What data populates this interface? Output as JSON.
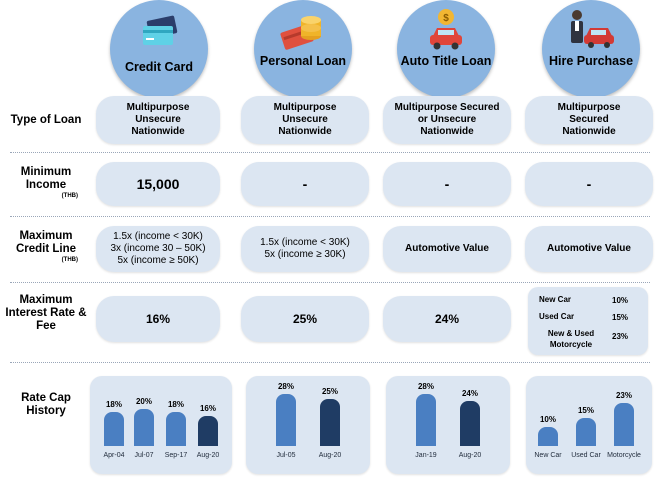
{
  "colors": {
    "circle": "#8ab4e0",
    "pill": "#dce6f2",
    "bar_light": "#4a7fc2",
    "bar_dark": "#1f3c64"
  },
  "headers": [
    {
      "label": "Credit Card",
      "icon": "credit-card-icon"
    },
    {
      "label": "Personal Loan",
      "icon": "coins-card-icon"
    },
    {
      "label": "Auto Title Loan",
      "icon": "car-coin-icon"
    },
    {
      "label": "Hire Purchase",
      "icon": "car-person-icon"
    }
  ],
  "rows": {
    "type_of_loan": {
      "label": "Type of Loan",
      "cells": [
        "Multipurpose Unsecure Nationwide",
        "Multipurpose Unsecure Nationwide",
        "Multipurpose Secured or Unsecure Nationwide",
        "Multipurpose Secured Nationwide"
      ]
    },
    "minimum_income": {
      "label": "Minimum Income",
      "unit": "(THB)",
      "cells": [
        "15,000",
        "-",
        "-",
        "-"
      ]
    },
    "max_credit_line": {
      "label": "Maximum Credit Line",
      "unit": "(THB)",
      "cells": [
        "1.5x (income < 30K)\n3x (income 30 – 50K)\n5x (income ≥ 50K)",
        "1.5x (income < 30K)\n5x (income ≥ 30K)",
        "Automotive Value",
        "Automotive Value"
      ]
    },
    "max_interest": {
      "label": "Maximum Interest Rate & Fee",
      "cells": [
        "16%",
        "25%",
        "24%"
      ],
      "hire_purchase": [
        {
          "name": "New Car",
          "rate": "10%"
        },
        {
          "name": "Used Car",
          "rate": "15%"
        },
        {
          "name": "New & Used Motorcycle",
          "rate": "23%"
        }
      ]
    },
    "rate_cap_history": {
      "label": "Rate Cap History"
    }
  },
  "chart_data": [
    {
      "type": "bar",
      "categories": [
        "Apr-04",
        "Jul-07",
        "Sep-17",
        "Aug-20"
      ],
      "values": [
        18,
        20,
        18,
        16
      ],
      "value_labels": [
        "18%",
        "20%",
        "18%",
        "16%"
      ]
    },
    {
      "type": "bar",
      "categories": [
        "Jul-05",
        "Aug-20"
      ],
      "values": [
        28,
        25
      ],
      "value_labels": [
        "28%",
        "25%"
      ]
    },
    {
      "type": "bar",
      "categories": [
        "Jan-19",
        "Aug-20"
      ],
      "values": [
        28,
        24
      ],
      "value_labels": [
        "28%",
        "24%"
      ]
    },
    {
      "type": "bar",
      "categories": [
        "New Car",
        "Used Car",
        "Motorcycle"
      ],
      "values": [
        10,
        15,
        23
      ],
      "value_labels": [
        "10%",
        "15%",
        "23%"
      ]
    }
  ]
}
